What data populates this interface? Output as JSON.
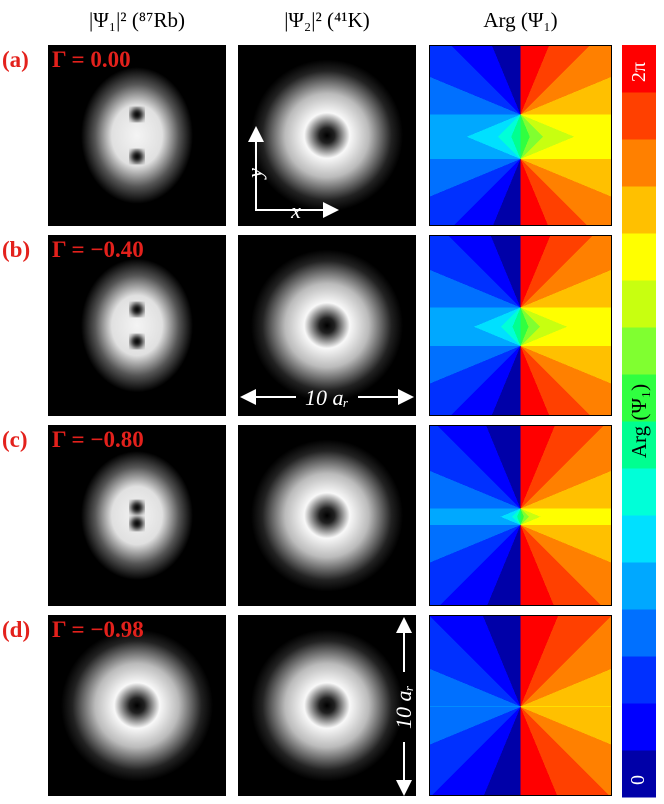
{
  "panel_columns": [
    "|Ψ₁|² (⁸⁷Rb)",
    "|Ψ₂|² (⁴¹K)",
    "Arg (Ψ₁)"
  ],
  "rows": [
    {
      "label": "(a)",
      "gamma": "Γ = 0.00"
    },
    {
      "label": "(b)",
      "gamma": "Γ = −0.40"
    },
    {
      "label": "(c)",
      "gamma": "Γ = −0.80"
    },
    {
      "label": "(d)",
      "gamma": "Γ = −0.98"
    }
  ],
  "annotations": {
    "y_axis": "y",
    "x_axis": "x",
    "width_scale": "10 aᵣ",
    "height_scale": "10 aᵣ"
  },
  "colorbar": {
    "title": "Arg (Ψ₁)",
    "top_label": "2π",
    "bottom_label": "0"
  }
}
